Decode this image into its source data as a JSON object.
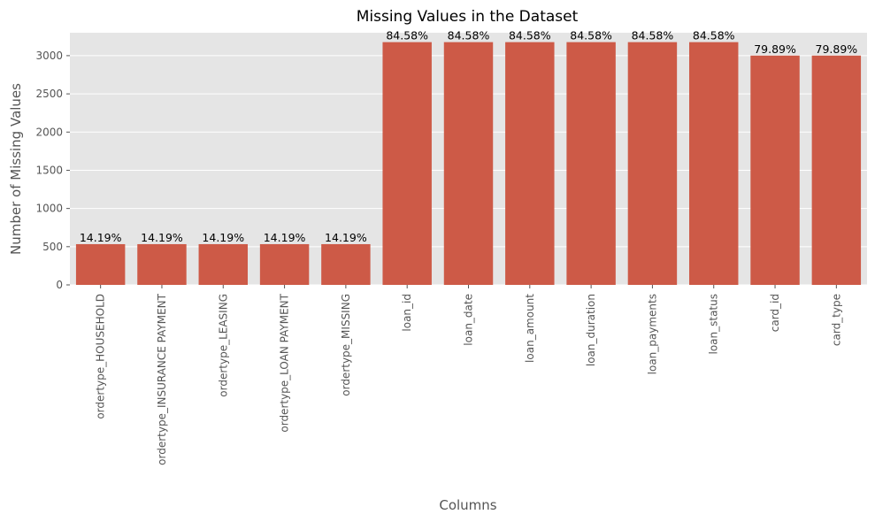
{
  "chart_data": {
    "type": "bar",
    "title": "Missing Values in the Dataset",
    "xlabel": "Columns",
    "ylabel": "Number of Missing Values",
    "categories": [
      "ordertype_HOUSEHOLD",
      "ordertype_INSURANCE PAYMENT",
      "ordertype_LEASING",
      "ordertype_LOAN PAYMENT",
      "ordertype_MISSING",
      "loan_id",
      "loan_date",
      "loan_amount",
      "loan_duration",
      "loan_payments",
      "loan_status",
      "card_id",
      "card_type"
    ],
    "values": [
      533,
      533,
      533,
      533,
      533,
      3177,
      3177,
      3177,
      3177,
      3177,
      3177,
      3001,
      3001
    ],
    "data_labels": [
      "14.19%",
      "14.19%",
      "14.19%",
      "14.19%",
      "14.19%",
      "84.58%",
      "84.58%",
      "84.58%",
      "84.58%",
      "84.58%",
      "84.58%",
      "79.89%",
      "79.89%"
    ],
    "yticks": [
      0,
      500,
      1000,
      1500,
      2000,
      2500,
      3000
    ],
    "ylim": [
      0,
      3300
    ],
    "grid": true,
    "colors": {
      "bar": "#cd5a47",
      "background": "#e5e5e5",
      "grid": "#ffffff"
    }
  }
}
